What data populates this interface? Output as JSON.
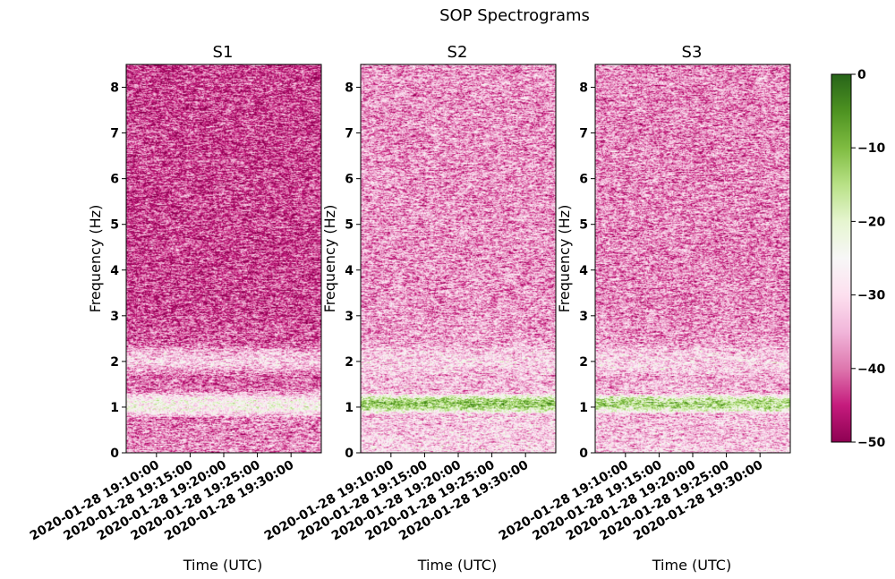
{
  "figure": {
    "suptitle": "SOP Spectrograms"
  },
  "colorbar": {
    "cmap": "PiYG",
    "range": [
      -50,
      0
    ],
    "ticks": [
      0,
      -10,
      -20,
      -30,
      -40,
      -50
    ],
    "tick_labels": [
      "0",
      "−10",
      "−20",
      "−30",
      "−40",
      "−50"
    ],
    "colors": {
      "low": "#8e0152",
      "mid": "#f7f7f7",
      "high": "#276419"
    }
  },
  "chart_data": [
    {
      "type": "heatmap",
      "title": "S1",
      "xlabel": "Time (UTC)",
      "ylabel": "Frequency (Hz)",
      "xlim": [
        "2020-01-28 19:05:30",
        "2020-01-28 19:34:30"
      ],
      "ylim": [
        0,
        8.5
      ],
      "x_ticks": [
        "2020-01-28 19:10:00",
        "2020-01-28 19:15:00",
        "2020-01-28 19:20:00",
        "2020-01-28 19:25:00",
        "2020-01-28 19:30:00"
      ],
      "y_ticks": [
        0,
        1,
        2,
        3,
        4,
        5,
        6,
        7,
        8
      ],
      "value_range": [
        -50,
        0
      ],
      "background_level_db": -43,
      "bands": [
        {
          "freq_range_hz": [
            0.8,
            1.3
          ],
          "level_db": -25
        },
        {
          "freq_range_hz": [
            1.75,
            2.3
          ],
          "level_db": -32
        }
      ]
    },
    {
      "type": "heatmap",
      "title": "S2",
      "xlabel": "Time (UTC)",
      "ylabel": "Frequency (Hz)",
      "xlim": [
        "2020-01-28 19:05:30",
        "2020-01-28 19:34:30"
      ],
      "ylim": [
        0,
        8.5
      ],
      "x_ticks": [
        "2020-01-28 19:10:00",
        "2020-01-28 19:15:00",
        "2020-01-28 19:20:00",
        "2020-01-28 19:25:00",
        "2020-01-28 19:30:00"
      ],
      "y_ticks": [
        0,
        1,
        2,
        3,
        4,
        5,
        6,
        7,
        8
      ],
      "value_range": [
        -50,
        0
      ],
      "background_level_db": -37,
      "bands": [
        {
          "freq_range_hz": [
            0.9,
            1.25
          ],
          "level_db": -12
        },
        {
          "freq_range_hz": [
            1.7,
            2.3
          ],
          "level_db": -31
        }
      ]
    },
    {
      "type": "heatmap",
      "title": "S3",
      "xlabel": "Time (UTC)",
      "ylabel": "Frequency (Hz)",
      "xlim": [
        "2020-01-28 19:05:30",
        "2020-01-28 19:34:30"
      ],
      "ylim": [
        0,
        8.5
      ],
      "x_ticks": [
        "2020-01-28 19:10:00",
        "2020-01-28 19:15:00",
        "2020-01-28 19:20:00",
        "2020-01-28 19:25:00",
        "2020-01-28 19:30:00"
      ],
      "y_ticks": [
        0,
        1,
        2,
        3,
        4,
        5,
        6,
        7,
        8
      ],
      "value_range": [
        -50,
        0
      ],
      "background_level_db": -38,
      "bands": [
        {
          "freq_range_hz": [
            0.9,
            1.25
          ],
          "level_db": -14
        },
        {
          "freq_range_hz": [
            1.7,
            2.3
          ],
          "level_db": -31
        }
      ]
    }
  ]
}
